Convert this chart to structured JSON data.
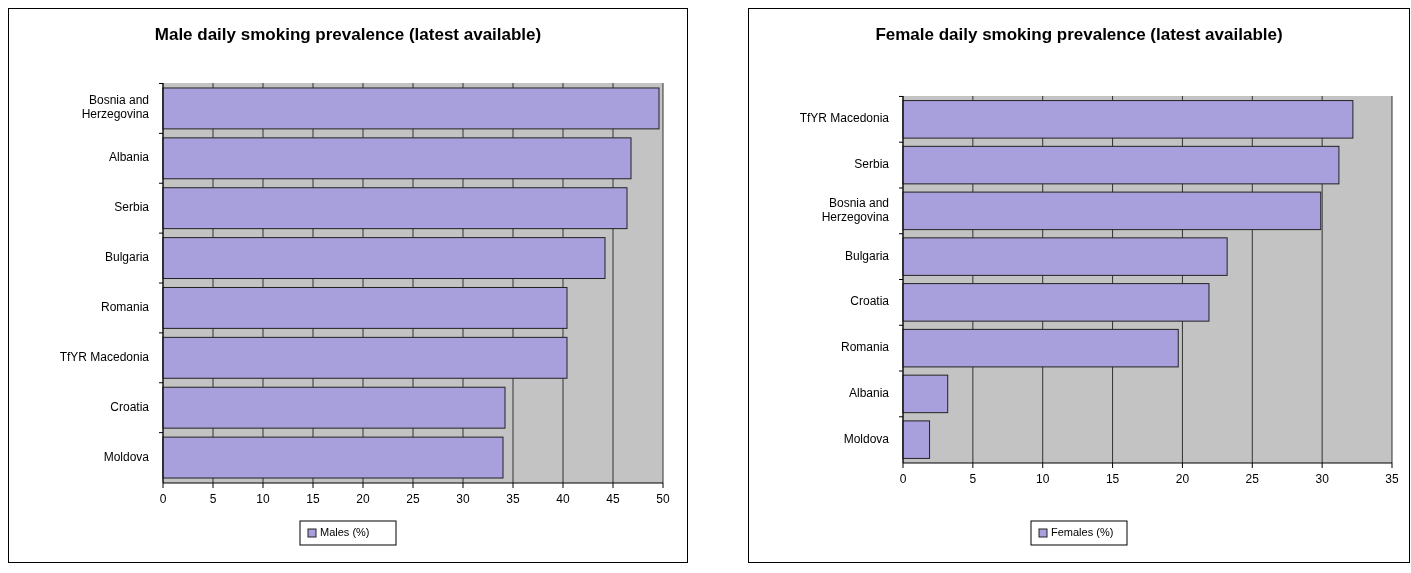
{
  "chart_data": [
    {
      "type": "bar",
      "orientation": "horizontal",
      "title": "Male daily smoking prevalence (latest available)",
      "categories": [
        "Bosnia and Herzegovina",
        "Albania",
        "Serbia",
        "Bulgaria",
        "Romania",
        "TfYR Macedonia",
        "Croatia",
        "Moldova"
      ],
      "series": [
        {
          "name": "Males (%)",
          "color": "#a8a0dc",
          "values": [
            49.6,
            46.8,
            46.4,
            44.2,
            40.4,
            40.4,
            34.2,
            34.0
          ]
        }
      ],
      "xlim": [
        0,
        50
      ],
      "xticks": [
        0,
        5,
        10,
        15,
        20,
        25,
        30,
        35,
        40,
        45,
        50
      ],
      "grid": "x",
      "legend": "bottom"
    },
    {
      "type": "bar",
      "orientation": "horizontal",
      "title": "Female daily smoking prevalence (latest available)",
      "categories": [
        "TfYR Macedonia",
        "Serbia",
        "Bosnia and Herzegovina",
        "Bulgaria",
        "Croatia",
        "Romania",
        "Albania",
        "Moldova"
      ],
      "series": [
        {
          "name": "Females (%)",
          "color": "#a8a0dc",
          "values": [
            32.2,
            31.2,
            29.9,
            23.2,
            21.9,
            19.7,
            3.2,
            1.9
          ]
        }
      ],
      "xlim": [
        0,
        35
      ],
      "xticks": [
        0,
        5,
        10,
        15,
        20,
        25,
        30,
        35
      ],
      "grid": "x",
      "legend": "bottom"
    }
  ]
}
